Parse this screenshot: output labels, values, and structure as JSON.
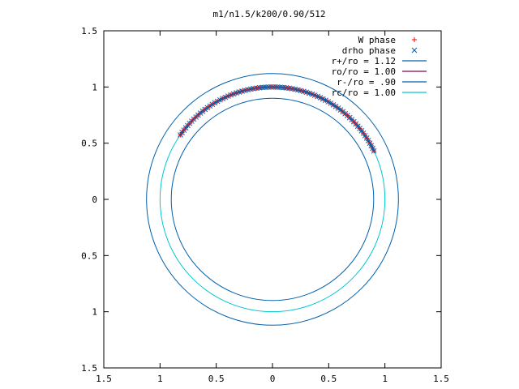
{
  "chart_data": {
    "type": "scatter",
    "title": "m1/n1.5/k200/0.90/512",
    "xlabel": "",
    "ylabel": "",
    "xlim": [
      -1.5,
      1.5
    ],
    "ylim": [
      -1.5,
      1.5
    ],
    "x_ticks": [
      -1.5,
      -1,
      -0.5,
      0,
      0.5,
      1,
      1.5
    ],
    "y_ticks": [
      -1.5,
      -1,
      -0.5,
      0,
      0.5,
      1,
      1.5
    ],
    "x_tick_labels": [
      "1.5",
      "1",
      "0.5",
      "0",
      "0.5",
      "1",
      "1.5"
    ],
    "y_tick_labels": [
      "1.5",
      "1",
      "0.5",
      "0",
      "0.5",
      "1",
      "1.5"
    ],
    "grid": false,
    "legend_position": "top-right",
    "series": [
      {
        "name": "W phase",
        "kind": "points",
        "marker": "+",
        "color": "#ff0000",
        "radius": 1.0,
        "theta_start_deg": 25.5,
        "theta_end_deg": 145,
        "points": 80
      },
      {
        "name": "drho phase",
        "kind": "points",
        "marker": "x",
        "color": "#0060ad",
        "radius": 1.0,
        "theta_start_deg": 25.5,
        "theta_end_deg": 145,
        "points": 80
      },
      {
        "name": "r+/ro = 1.12",
        "kind": "circle",
        "radius": 1.12,
        "color": "#0060ad"
      },
      {
        "name": "ro/ro = 1.00",
        "kind": "arc",
        "radius": 1.0,
        "theta_start_deg": 25.5,
        "theta_end_deg": 145,
        "color": "#8b0057"
      },
      {
        "name": "r-/ro = .90",
        "kind": "circle",
        "radius": 0.9,
        "color": "#0060ad"
      },
      {
        "name": "rc/ro = 1.00",
        "kind": "circle",
        "radius": 1.0,
        "color": "#00c8d0"
      }
    ]
  }
}
